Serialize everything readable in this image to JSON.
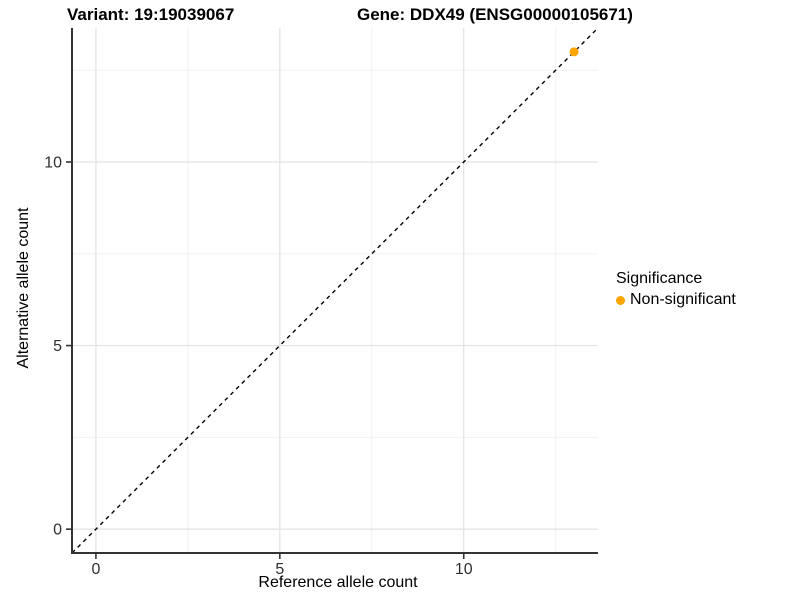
{
  "titles": {
    "variant": "Variant: 19:19039067",
    "gene": "Gene: DDX49 (ENSG00000105671)"
  },
  "chart_data": {
    "type": "scatter",
    "xlabel": "Reference allele count",
    "ylabel": "Alternative allele count",
    "xlim": [
      -0.65,
      13.65
    ],
    "ylim": [
      -0.65,
      13.65
    ],
    "x_ticks": [
      0,
      5,
      10
    ],
    "y_ticks": [
      0,
      5,
      10
    ],
    "x_minor_ticks": [
      2.5,
      7.5,
      12.5
    ],
    "y_minor_ticks": [
      2.5,
      7.5,
      12.5
    ],
    "grid": true,
    "reference_line": {
      "slope": 1,
      "intercept": 0,
      "style": "dashed"
    },
    "series": [
      {
        "name": "Non-significant",
        "color": "#FFA500",
        "points": [
          {
            "x": 13,
            "y": 13
          }
        ]
      }
    ],
    "legend": {
      "title": "Significance",
      "position": "right",
      "items": [
        {
          "label": "Non-significant",
          "color": "#FFA500"
        }
      ]
    }
  },
  "colors": {
    "point_orange": "#FFA500",
    "grid_major": "#E2E2E2",
    "grid_minor": "#EFEFEF",
    "axis_line": "#333333",
    "tick_mark": "#333333",
    "tick_label": "#303030",
    "reference_line": "#000000",
    "background": "#FFFFFF",
    "text": "#000000"
  }
}
